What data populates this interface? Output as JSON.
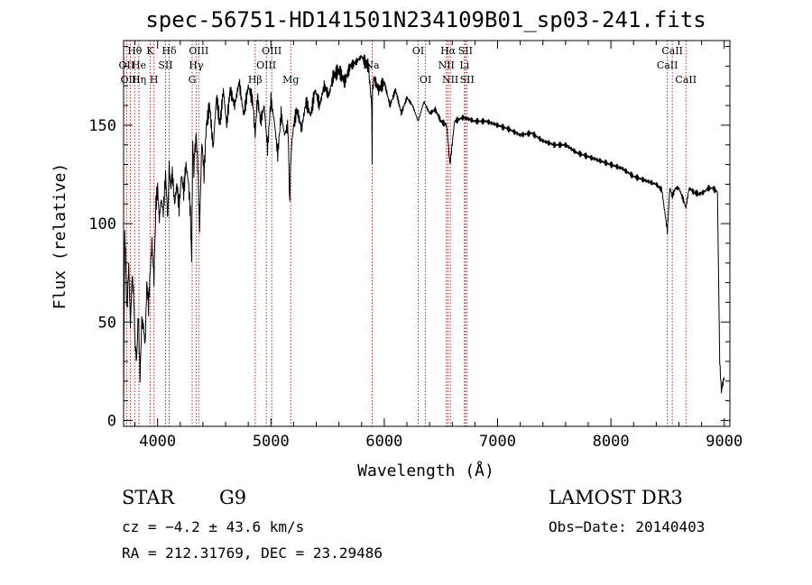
{
  "chart_data": {
    "type": "line",
    "title": "spec-56751-HD141501N234109B01_sp03-241.fits",
    "xlabel": "Wavelength (Å)",
    "ylabel": "Flux (relative)",
    "xlim": [
      3700,
      9050
    ],
    "ylim": [
      -3,
      193
    ],
    "x_ticks": [
      4000,
      5000,
      6000,
      7000,
      8000,
      9000
    ],
    "y_ticks": [
      0,
      50,
      100,
      150
    ],
    "grid": false,
    "series": [
      {
        "name": "spectrum",
        "x": [
          3700,
          3710,
          3720,
          3730,
          3745,
          3760,
          3775,
          3790,
          3800,
          3815,
          3830,
          3845,
          3860,
          3875,
          3890,
          3905,
          3920,
          3935,
          3950,
          3968,
          3985,
          4000,
          4015,
          4030,
          4050,
          4070,
          4090,
          4102,
          4115,
          4130,
          4150,
          4170,
          4190,
          4210,
          4230,
          4250,
          4270,
          4290,
          4300,
          4310,
          4320,
          4330,
          4340,
          4355,
          4370,
          4390,
          4410,
          4430,
          4460,
          4490,
          4520,
          4550,
          4580,
          4610,
          4640,
          4680,
          4720,
          4760,
          4800,
          4840,
          4861,
          4880,
          4910,
          4940,
          4970,
          5000,
          5030,
          5060,
          5090,
          5120,
          5150,
          5167,
          5172,
          5183,
          5200,
          5230,
          5270,
          5310,
          5350,
          5390,
          5430,
          5470,
          5510,
          5550,
          5600,
          5650,
          5700,
          5750,
          5800,
          5830,
          5860,
          5889,
          5893,
          5896,
          5910,
          5950,
          6000,
          6050,
          6100,
          6150,
          6200,
          6250,
          6300,
          6350,
          6400,
          6450,
          6500,
          6550,
          6563,
          6580,
          6620,
          6700,
          6800,
          6900,
          7000,
          7100,
          7200,
          7300,
          7400,
          7500,
          7600,
          7700,
          7800,
          7900,
          8000,
          8100,
          8200,
          8300,
          8400,
          8450,
          8498,
          8520,
          8542,
          8570,
          8600,
          8640,
          8662,
          8690,
          8730,
          8780,
          8820,
          8860,
          8900,
          8940,
          8960,
          8975,
          8985,
          9000
        ],
        "y": [
          10,
          95,
          78,
          55,
          80,
          48,
          74,
          62,
          40,
          30,
          55,
          22,
          50,
          48,
          38,
          70,
          58,
          76,
          90,
          72,
          110,
          118,
          102,
          112,
          106,
          125,
          102,
          130,
          118,
          126,
          110,
          120,
          108,
          125,
          116,
          130,
          122,
          105,
          82,
          140,
          128,
          138,
          145,
          130,
          98,
          142,
          125,
          150,
          160,
          138,
          165,
          150,
          168,
          150,
          168,
          160,
          172,
          155,
          170,
          162,
          145,
          164,
          152,
          160,
          138,
          163,
          152,
          135,
          156,
          145,
          150,
          108,
          128,
          140,
          150,
          158,
          148,
          162,
          155,
          168,
          160,
          170,
          165,
          175,
          178,
          172,
          180,
          182,
          185,
          182,
          180,
          160,
          130,
          168,
          174,
          168,
          172,
          160,
          168,
          156,
          164,
          160,
          152,
          162,
          156,
          158,
          152,
          150,
          142,
          130,
          152,
          154,
          152,
          152,
          150,
          148,
          145,
          146,
          142,
          140,
          140,
          136,
          134,
          132,
          130,
          128,
          124,
          122,
          120,
          117,
          96,
          118,
          114,
          118,
          118,
          112,
          108,
          118,
          116,
          115,
          116,
          118,
          118,
          116,
          30,
          15,
          18,
          22
        ]
      }
    ],
    "lines": [
      {
        "label": "Hθ",
        "wl": 3798,
        "row": 0
      },
      {
        "label": "OII",
        "wl": 3727,
        "row": 1
      },
      {
        "label": "OIII",
        "wl": 3760,
        "row": 2
      },
      {
        "label": "He",
        "wl": 3835,
        "row": 1
      },
      {
        "label": "Hη",
        "wl": 3835,
        "row": 2
      },
      {
        "label": "K",
        "wl": 3934,
        "row": 0
      },
      {
        "label": "SII",
        "wl": 4070,
        "row": 1
      },
      {
        "label": "H",
        "wl": 3968,
        "row": 2
      },
      {
        "label": "Hδ",
        "wl": 4102,
        "row": 0
      },
      {
        "label": "OIII",
        "wl": 4363,
        "row": 0
      },
      {
        "label": "Hγ",
        "wl": 4340,
        "row": 1
      },
      {
        "label": "G",
        "wl": 4305,
        "row": 2
      },
      {
        "label": "OIII",
        "wl": 5007,
        "row": 0
      },
      {
        "label": "OIII",
        "wl": 4959,
        "row": 1
      },
      {
        "label": "Hβ",
        "wl": 4861,
        "row": 2
      },
      {
        "label": "Mg",
        "wl": 5175,
        "row": 2
      },
      {
        "label": "Na",
        "wl": 5893,
        "row": 1
      },
      {
        "label": "OI",
        "wl": 6300,
        "row": 0
      },
      {
        "label": "OI",
        "wl": 6364,
        "row": 2
      },
      {
        "label": "Hα",
        "wl": 6563,
        "row": 0
      },
      {
        "label": "SII",
        "wl": 6716,
        "row": 0
      },
      {
        "label": "NII",
        "wl": 6548,
        "row": 1
      },
      {
        "label": "Li",
        "wl": 6708,
        "row": 1
      },
      {
        "label": "NII",
        "wl": 6583,
        "row": 2
      },
      {
        "label": "SII",
        "wl": 6731,
        "row": 2
      },
      {
        "label": "CaII",
        "wl": 8542,
        "row": 0
      },
      {
        "label": "CaII",
        "wl": 8498,
        "row": 1
      },
      {
        "label": "CaII",
        "wl": 8662,
        "row": 2
      }
    ]
  },
  "info": {
    "class": "STAR",
    "subclass": "G9",
    "survey": "LAMOST DR3",
    "cz": "cz = −4.2 ± 43.6 km/s",
    "obs_date": "Obs−Date: 20140403",
    "radec": "RA = 212.31769, DEC =  23.29486"
  },
  "colors": {
    "spectrum": "#000000",
    "line_marker": "#b22222",
    "text": "#000000"
  }
}
